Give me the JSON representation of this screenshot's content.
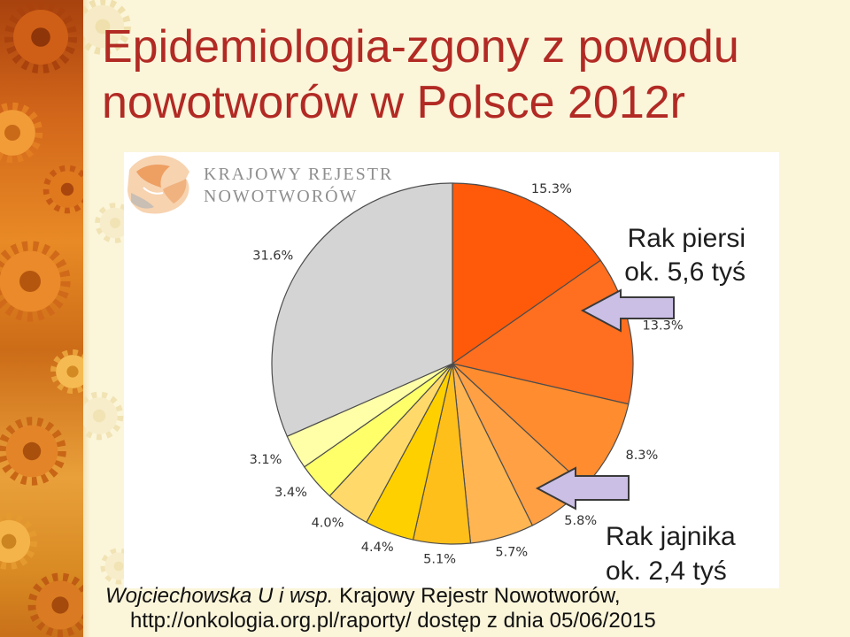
{
  "theme": {
    "background": "#fbf5da",
    "panel_background": "#ffffff",
    "title_color": "#b22a24",
    "text_color": "#1e1e1e",
    "arrow_fill": "#cbbfe6",
    "arrow_stroke": "#3a3a3a"
  },
  "slide": {
    "title_lines": [
      "Epidemiologia-zgony z powodu",
      "nowotworów w Polsce 2012r"
    ],
    "logo": {
      "icon": "registry-logo-icon",
      "lines": [
        "KRAJOWY REJESTR",
        "NOWOTWORÓW"
      ]
    },
    "citation": {
      "authors": "Wojciechowska U i wsp.",
      "source": "Krajowy Rejestr Nowotworów,",
      "access": "http://onkologia.org.pl/raporty/ dostęp z dnia 05/06/2015"
    }
  },
  "chart_data": {
    "type": "pie",
    "values": [
      15.3,
      13.3,
      8.3,
      5.8,
      5.7,
      5.1,
      4.4,
      4.0,
      3.4,
      3.1,
      31.6
    ],
    "labels": [
      "15.3%",
      "13.3%",
      "8.3%",
      "5.8%",
      "5.7%",
      "5.1%",
      "4.4%",
      "4.0%",
      "3.4%",
      "3.1%",
      "31.6%"
    ],
    "colors": [
      "#ff5a0a",
      "#ff6f1f",
      "#ff8c2e",
      "#ffa044",
      "#ffb552",
      "#ffbf1a",
      "#ffd000",
      "#ffda6a",
      "#ffff6a",
      "#ffffa8",
      "#d4d4d4"
    ],
    "outline_color": "#4d4d4d",
    "annotations": [
      {
        "label": "Rak piersi",
        "note": "ok. 5,6 tyś"
      },
      {
        "label": "Rak jajnika",
        "note": "ok. 2,4 tyś"
      }
    ]
  }
}
